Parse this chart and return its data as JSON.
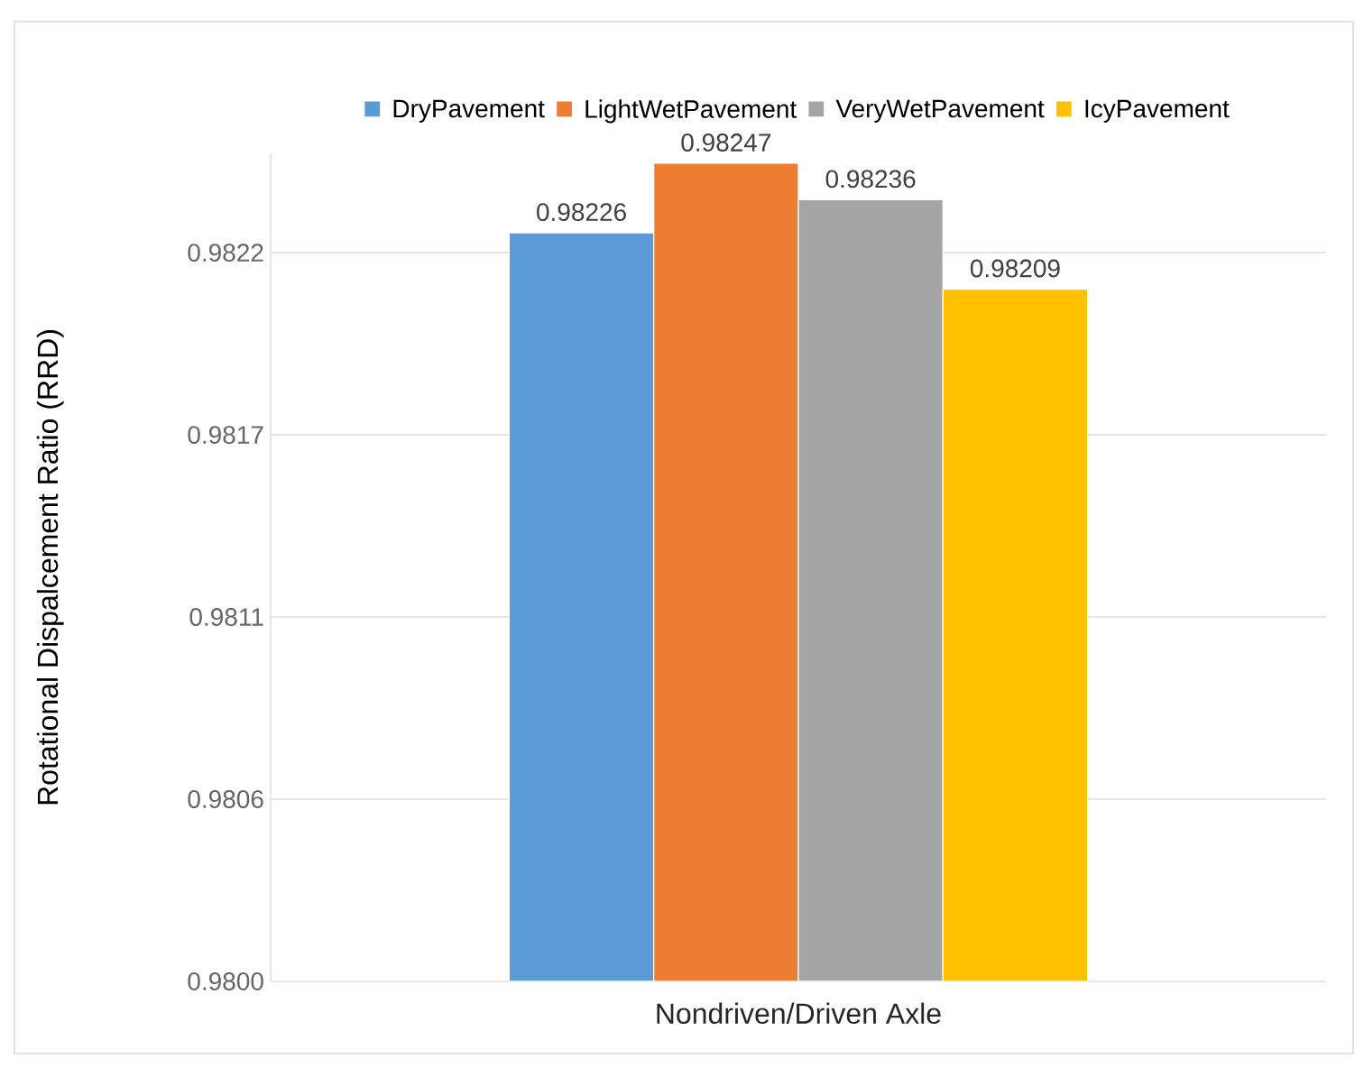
{
  "chart_data": {
    "type": "bar",
    "ylabel": "Rotational Dispalcement Ratio (RRD)",
    "categories": [
      "Nondriven/Driven Axle"
    ],
    "series": [
      {
        "name": "DryPavement",
        "color": "#5b9bd5",
        "values": [
          0.98226
        ]
      },
      {
        "name": "LightWetPavement",
        "color": "#ed7d31",
        "values": [
          0.98247
        ]
      },
      {
        "name": "VeryWetPavement",
        "color": "#a5a5a5",
        "values": [
          0.98236
        ]
      },
      {
        "name": "IcyPavement",
        "color": "#ffc000",
        "values": [
          0.98209
        ]
      }
    ],
    "ylim": [
      0.98,
      0.9825
    ],
    "yticks": [
      {
        "value": 0.98,
        "label": "0.9800"
      },
      {
        "value": 0.98055,
        "label": "0.9806"
      },
      {
        "value": 0.9811,
        "label": "0.9811"
      },
      {
        "value": 0.98165,
        "label": "0.9817"
      },
      {
        "value": 0.9822,
        "label": "0.9822"
      }
    ],
    "grid": "y",
    "legend": "top",
    "data_labels": true
  }
}
